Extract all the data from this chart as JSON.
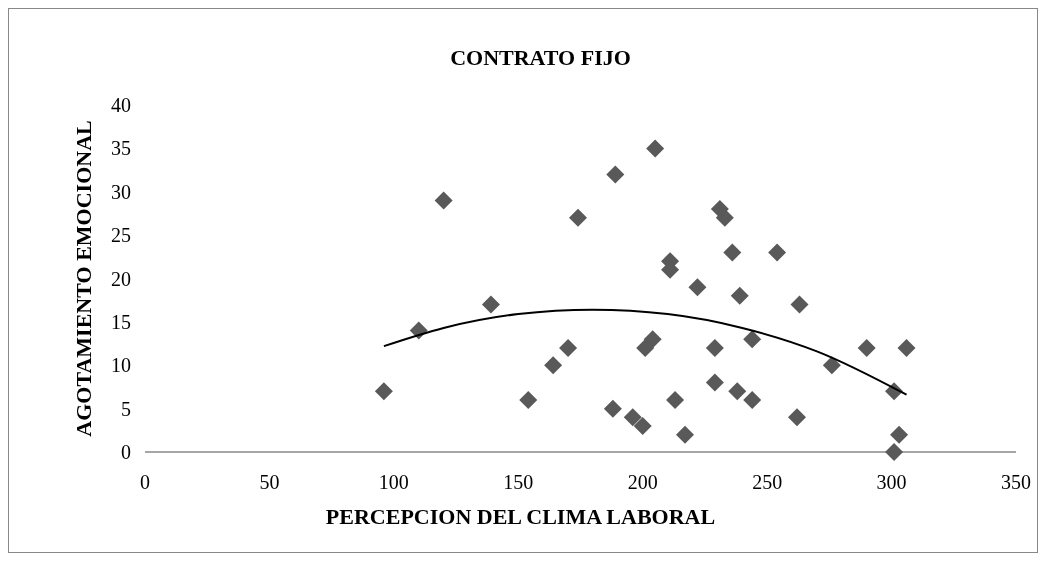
{
  "chart_data": {
    "type": "scatter",
    "title": "CONTRATO FIJO",
    "xlabel": "PERCEPCION DEL CLIMA LABORAL",
    "ylabel": "AGOTAMIENTO EMOCIONAL",
    "xlim": [
      0,
      350
    ],
    "xticks": [
      0,
      50,
      100,
      150,
      200,
      250,
      300,
      350
    ],
    "ylim": [
      0,
      40
    ],
    "yticks": [
      0,
      5,
      10,
      15,
      20,
      25,
      30,
      35,
      40
    ],
    "grid": false,
    "marker": "diamond",
    "series": [
      {
        "color": "#595959",
        "x": [
          96,
          110,
          120,
          139,
          154,
          164,
          170,
          174,
          188,
          189,
          196,
          200,
          201,
          204,
          205,
          211,
          211,
          213,
          217,
          222,
          229,
          229,
          231,
          233,
          236,
          238,
          239,
          244,
          244,
          254,
          262,
          263,
          276,
          290,
          301,
          303,
          301,
          306
        ],
        "values": [
          7,
          14,
          29,
          17,
          6,
          10,
          12,
          27,
          5,
          32,
          4,
          3,
          12,
          13,
          35,
          22,
          21,
          6,
          2,
          19,
          12,
          8,
          28,
          27,
          23,
          7,
          18,
          13,
          6,
          23,
          4,
          17,
          10,
          12,
          7,
          2,
          0,
          12
        ]
      },
      {
        "type": "line",
        "color": "#000000",
        "marker": "none",
        "x": [
          96,
          120,
          150,
          180,
          210,
          240,
          270,
          306
        ],
        "values": [
          12.2,
          14.3,
          15.9,
          16.4,
          15.9,
          14.3,
          11.6,
          6.6
        ]
      }
    ]
  }
}
